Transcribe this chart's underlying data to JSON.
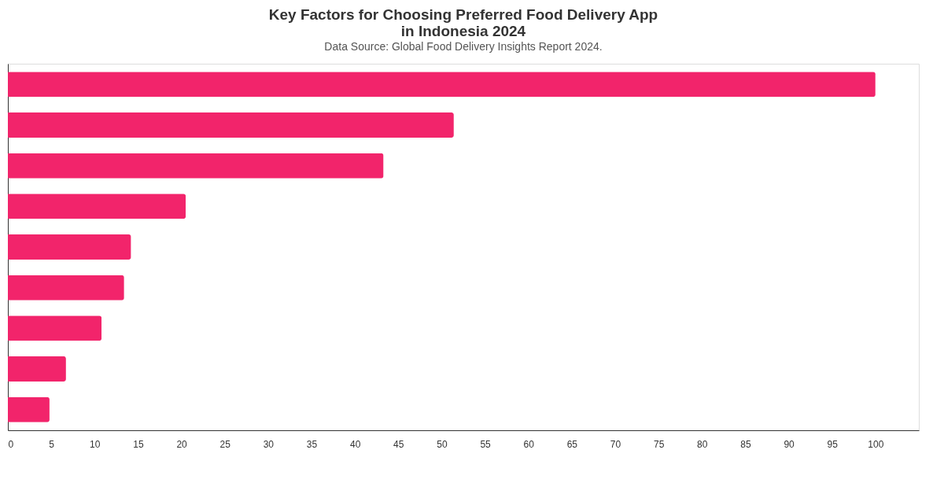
{
  "chart_data": {
    "type": "bar",
    "orientation": "horizontal",
    "title": [
      "Key Factors for Choosing Preferred Food Delivery App",
      "in Indonesia 2024"
    ],
    "subtitle": "Data Source: Global Food Delivery Insights Report 2024.",
    "categories": [
      null,
      null,
      null,
      null,
      null,
      null,
      null,
      null,
      null
    ],
    "values": [
      100,
      51.4,
      43.3,
      20.5,
      14.2,
      13.4,
      10.8,
      6.7,
      4.8
    ],
    "color": "#f2246b",
    "xlim": [
      0,
      105
    ],
    "xticks": [
      0,
      5,
      10,
      15,
      20,
      25,
      30,
      35,
      40,
      45,
      50,
      55,
      60,
      65,
      70,
      75,
      80,
      85,
      90,
      95,
      100
    ],
    "grid": false,
    "tick_labels": "x"
  }
}
